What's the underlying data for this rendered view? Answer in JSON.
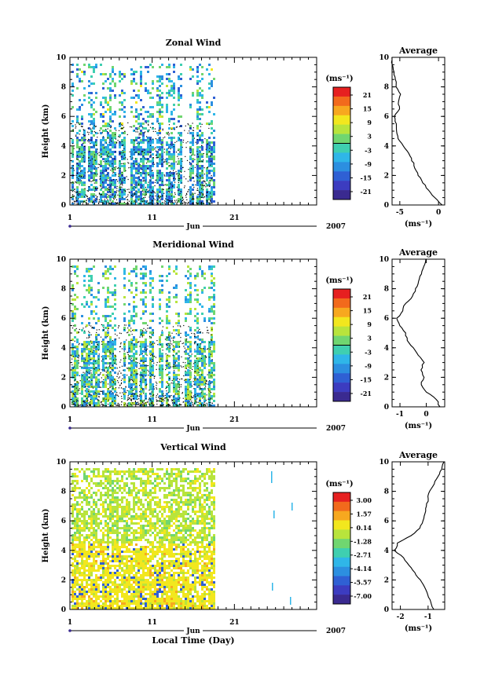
{
  "chart_data": [
    {
      "type": "heatmap",
      "title": "Zonal Wind",
      "ylabel": "Height (km)",
      "xlabel": "",
      "ylim": [
        0,
        10
      ],
      "yticks": [
        "0",
        "2",
        "4",
        "6",
        "8",
        "10"
      ],
      "xticks": [
        "1",
        "11",
        "21"
      ],
      "xlim": [
        1,
        31
      ],
      "month_label": "Jun",
      "year_label": "2007",
      "data_end_day": 18.5,
      "colorbar_unit": "(ms⁻¹)",
      "colorbar_ticks": [
        "21",
        "15",
        "9",
        "3",
        "-3",
        "-9",
        "-15",
        "-21"
      ],
      "colorbar_colors": [
        "#e62020",
        "#f26a1c",
        "#f7a81f",
        "#f2e71e",
        "#b8e43c",
        "#70d670",
        "#3fcfb0",
        "#2fb6e8",
        "#2c8fe0",
        "#2f60d4",
        "#3c3cc0",
        "#3a2a90"
      ],
      "profile": {
        "title": "Average",
        "xlabel": "(ms⁻¹)",
        "xticks": [
          "-5",
          "0"
        ],
        "xlim": [
          -6,
          0.8
        ],
        "height": [
          0,
          0.5,
          1,
          1.5,
          2,
          2.5,
          3,
          3.5,
          4,
          4.5,
          5,
          5.5,
          6,
          6.5,
          7,
          7.5,
          8,
          8.5,
          9,
          9.5,
          10
        ],
        "values": [
          0.5,
          -0.5,
          -1.3,
          -2.0,
          -2.6,
          -3.0,
          -3.4,
          -3.8,
          -4.5,
          -5.2,
          -5.5,
          -5.5,
          -5.7,
          -5.0,
          -5.2,
          -4.9,
          -5.4,
          -5.5,
          -5.8,
          -6.0,
          -6.0
        ]
      }
    },
    {
      "type": "heatmap",
      "title": "Meridional Wind",
      "ylabel": "Height (km)",
      "xlabel": "",
      "ylim": [
        0,
        10
      ],
      "yticks": [
        "0",
        "2",
        "4",
        "6",
        "8",
        "10"
      ],
      "xticks": [
        "1",
        "11",
        "21"
      ],
      "xlim": [
        1,
        31
      ],
      "month_label": "Jun",
      "year_label": "2007",
      "data_end_day": 18.5,
      "colorbar_unit": "(ms⁻¹)",
      "colorbar_ticks": [
        "21",
        "15",
        "9",
        "3",
        "-3",
        "-9",
        "-15",
        "-21"
      ],
      "colorbar_colors": [
        "#e62020",
        "#f26a1c",
        "#f7a81f",
        "#f2e71e",
        "#b8e43c",
        "#70d670",
        "#3fcfb0",
        "#2fb6e8",
        "#2c8fe0",
        "#2f60d4",
        "#3c3cc0",
        "#3a2a90"
      ],
      "profile": {
        "title": "Average",
        "xlabel": "(ms⁻¹)",
        "xticks": [
          "-1",
          "0"
        ],
        "xlim": [
          -1.3,
          0.7
        ],
        "height": [
          0,
          0.5,
          1,
          1.5,
          2,
          2.5,
          3,
          3.5,
          4,
          4.5,
          5,
          5.5,
          6,
          6.5,
          7,
          7.5,
          8,
          8.5,
          9,
          9.5,
          10
        ],
        "values": [
          0.5,
          0.4,
          0.0,
          -0.2,
          -0.1,
          -0.2,
          -0.1,
          -0.3,
          -0.5,
          -0.7,
          -0.8,
          -1.0,
          -1.1,
          -0.9,
          -0.8,
          -0.5,
          -0.4,
          -0.3,
          -0.2,
          -0.1,
          0.0
        ]
      }
    },
    {
      "type": "heatmap",
      "title": "Vertical Wind",
      "ylabel": "Height (km)",
      "xlabel": "Local Time (Day)",
      "ylim": [
        0,
        10
      ],
      "yticks": [
        "0",
        "2",
        "4",
        "6",
        "8",
        "10"
      ],
      "xticks": [
        "1",
        "11",
        "21"
      ],
      "xlim": [
        1,
        31
      ],
      "month_label": "Jun",
      "year_label": "2007",
      "data_end_day": 18.5,
      "colorbar_unit": "(ms⁻¹)",
      "colorbar_ticks": [
        "3.00",
        "1.57",
        "0.14",
        "-1.28",
        "-2.71",
        "-4.14",
        "-5.57",
        "-7.00"
      ],
      "colorbar_colors": [
        "#e62020",
        "#f26a1c",
        "#f7a81f",
        "#f2e71e",
        "#b8e43c",
        "#70d670",
        "#3fcfb0",
        "#2fb6e8",
        "#2c8fe0",
        "#2f60d4",
        "#3c3cc0",
        "#3a2a90"
      ],
      "profile": {
        "title": "Average",
        "xlabel": "(ms⁻¹)",
        "xticks": [
          "-2",
          "-1"
        ],
        "xlim": [
          -2.3,
          -0.4
        ],
        "height": [
          0,
          0.5,
          1,
          1.5,
          2,
          2.5,
          3,
          3.5,
          4,
          4.5,
          5,
          5.5,
          6,
          6.5,
          7,
          7.5,
          8,
          8.5,
          9,
          9.5,
          10
        ],
        "values": [
          -0.8,
          -0.9,
          -1.0,
          -1.1,
          -1.3,
          -1.5,
          -1.7,
          -1.9,
          -2.2,
          -2.1,
          -1.6,
          -1.3,
          -1.2,
          -1.1,
          -1.05,
          -1.0,
          -0.95,
          -0.8,
          -0.65,
          -0.5,
          -0.45
        ]
      }
    }
  ]
}
